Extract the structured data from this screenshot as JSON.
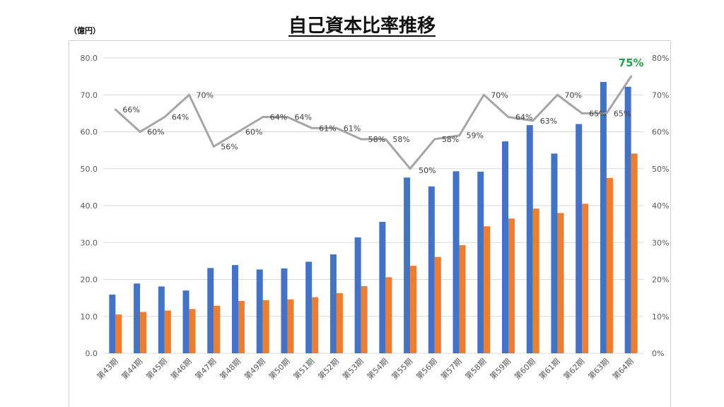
{
  "header": {
    "title": "自己資本比率推移",
    "unit": "（億円）"
  },
  "chart_data": {
    "type": "bar",
    "title": "自己資本比率推移",
    "ylabel": "（億円）",
    "ylim": [
      0,
      80
    ],
    "y_ticks": [
      "0.0",
      "10.0",
      "20.0",
      "30.0",
      "40.0",
      "50.0",
      "60.0",
      "70.0",
      "80.0"
    ],
    "y2lim": [
      0,
      80
    ],
    "y2_ticks": [
      "0%",
      "10%",
      "20%",
      "30%",
      "40%",
      "50%",
      "60%",
      "70%",
      "80%"
    ],
    "grid": true,
    "categories": [
      "第43期",
      "第44期",
      "第45期",
      "第46期",
      "第47期",
      "第48期",
      "第49期",
      "第50期",
      "第51期",
      "第52期",
      "第53期",
      "第54期",
      "第55期",
      "第56期",
      "第57期",
      "第58期",
      "第59期",
      "第60期",
      "第61期",
      "第62期",
      "第63期",
      "第64期"
    ],
    "series": [
      {
        "type": "bar",
        "values": [
          15.9,
          18.9,
          18.1,
          17.0,
          23.1,
          23.9,
          22.7,
          23.0,
          24.8,
          26.8,
          31.4,
          35.6,
          47.6,
          45.2,
          49.3,
          49.2,
          57.4,
          61.8,
          54.1,
          62.1,
          73.5,
          72.2
        ]
      },
      {
        "type": "bar",
        "values": [
          10.5,
          11.2,
          11.6,
          12.0,
          12.9,
          14.2,
          14.4,
          14.6,
          15.2,
          16.3,
          18.2,
          20.6,
          23.7,
          26.1,
          29.3,
          34.4,
          36.5,
          39.2,
          38.0,
          40.5,
          47.5,
          54.1
        ]
      },
      {
        "type": "line",
        "axis": "right",
        "values": [
          66,
          60,
          64,
          70,
          56,
          60,
          64,
          64,
          61,
          61,
          58,
          58,
          50,
          58,
          59,
          70,
          64,
          63,
          70,
          65,
          65,
          75
        ],
        "labels": [
          "66%",
          "60%",
          "64%",
          "70%",
          "56%",
          "60%",
          "64%",
          "64%",
          "61%",
          "61%",
          "58%",
          "58%",
          "50%",
          "58%",
          "59%",
          "70%",
          "64%",
          "63%",
          "70%",
          "65%",
          "65%",
          "75%"
        ]
      }
    ],
    "colors": {
      "bar1": "#4472c4",
      "bar2": "#ed7d31",
      "line": "#a5a5a5",
      "grid": "#d9d9d9",
      "highlight": "#1fa34a"
    }
  }
}
